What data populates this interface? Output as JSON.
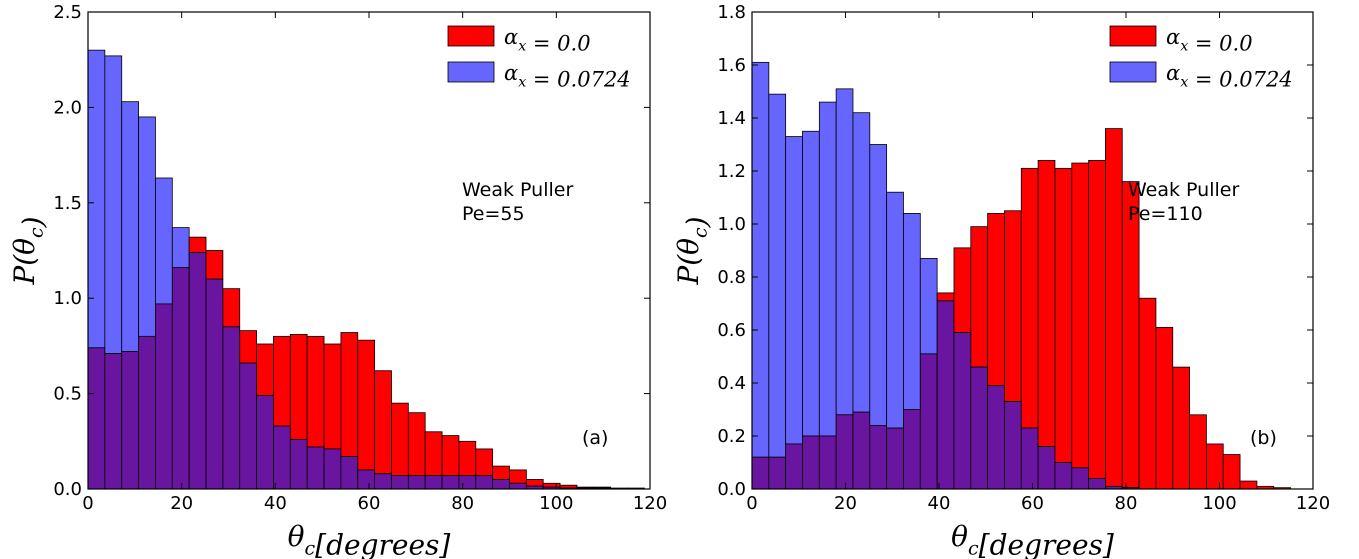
{
  "chart_data": [
    {
      "type": "bar",
      "panel_label": "(a)",
      "annotation": [
        "Weak Puller",
        "Pe=55"
      ],
      "xlabel": "θc[degrees]",
      "ylabel": "P(θc)",
      "xlim": [
        0,
        120
      ],
      "ylim": [
        0,
        2.5
      ],
      "xticks": [
        "0",
        "20",
        "40",
        "60",
        "80",
        "100",
        "120"
      ],
      "yticks": [
        "0.0",
        "0.5",
        "1.0",
        "1.5",
        "2.0",
        "2.5"
      ],
      "bin_width": 3.6,
      "legend_position": "top-right",
      "overlap_color": "#6a15a0",
      "series": [
        {
          "name": "αx = 0.0",
          "color": "#ff0000",
          "values": [
            0.74,
            0.71,
            0.72,
            0.8,
            0.97,
            1.16,
            1.32,
            1.25,
            1.05,
            0.83,
            0.76,
            0.8,
            0.81,
            0.8,
            0.76,
            0.82,
            0.78,
            0.62,
            0.45,
            0.4,
            0.3,
            0.28,
            0.25,
            0.21,
            0.12,
            0.1,
            0.05,
            0.03,
            0.02,
            0.01,
            0.01,
            0.005,
            0.005,
            0.0
          ]
        },
        {
          "name": "αx = 0.0724",
          "color": "#6666ff",
          "values": [
            2.3,
            2.27,
            2.03,
            1.95,
            1.63,
            1.37,
            1.24,
            1.1,
            0.85,
            0.66,
            0.49,
            0.33,
            0.26,
            0.22,
            0.21,
            0.17,
            0.1,
            0.08,
            0.07,
            0.07,
            0.07,
            0.07,
            0.07,
            0.07,
            0.05,
            0.03,
            0.015,
            0.01,
            0.005,
            0.005,
            0.005,
            0.005,
            0.0,
            0.0
          ]
        }
      ]
    },
    {
      "type": "bar",
      "panel_label": "(b)",
      "annotation": [
        "Weak Puller",
        "Pe=110"
      ],
      "xlabel": "θc[degrees]",
      "ylabel": "P(θc)",
      "xlim": [
        0,
        120
      ],
      "ylim": [
        0,
        1.8
      ],
      "xticks": [
        "0",
        "20",
        "40",
        "60",
        "80",
        "100",
        "120"
      ],
      "yticks": [
        "0.0",
        "0.2",
        "0.4",
        "0.6",
        "0.8",
        "1.0",
        "1.2",
        "1.4",
        "1.6",
        "1.8"
      ],
      "bin_width": 3.6,
      "legend_position": "top-right",
      "overlap_color": "#6a15a0",
      "series": [
        {
          "name": "αx = 0.0",
          "color": "#ff0000",
          "values": [
            0.12,
            0.12,
            0.17,
            0.2,
            0.2,
            0.28,
            0.29,
            0.24,
            0.23,
            0.3,
            0.51,
            0.74,
            0.91,
            0.99,
            1.04,
            1.05,
            1.21,
            1.24,
            1.21,
            1.23,
            1.24,
            1.36,
            1.16,
            0.72,
            0.61,
            0.46,
            0.28,
            0.17,
            0.13,
            0.03,
            0.01,
            0.005,
            0.0,
            0.0
          ]
        },
        {
          "name": "αx = 0.0724",
          "color": "#6666ff",
          "values": [
            1.61,
            1.49,
            1.33,
            1.35,
            1.46,
            1.51,
            1.42,
            1.3,
            1.12,
            1.04,
            0.87,
            0.71,
            0.59,
            0.46,
            0.39,
            0.33,
            0.23,
            0.16,
            0.1,
            0.08,
            0.04,
            0.01,
            0.005,
            0.0,
            0.0,
            0.0,
            0.0,
            0.0,
            0.0,
            0.0,
            0.0,
            0.0,
            0.0,
            0.0
          ]
        }
      ]
    }
  ]
}
